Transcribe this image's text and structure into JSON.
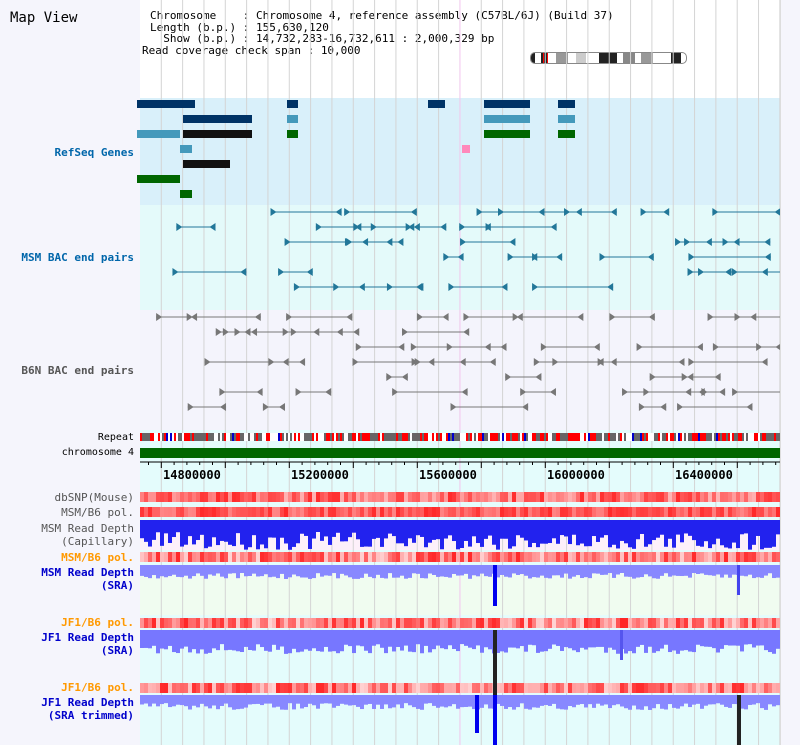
{
  "title": "Map View",
  "info": {
    "chromosome_label": "Chromosome    : ",
    "chromosome": "Chromosome 4, reference assembly (C57BL/6J) (Build 37)",
    "length_label": "Length (b.p.) : ",
    "length": "155,630,120",
    "show_label": "  Show (b.p.) : ",
    "show": "14,732,283-16,732,611 : 2,000,329 bp",
    "span_label": "Read coverage check span : ",
    "span": "10,000"
  },
  "range": {
    "start": 14732283,
    "end": 16732611
  },
  "tracks": {
    "refseq": "RefSeq Genes",
    "msm_bac": "MSM BAC end pairs",
    "b6n_bac": "B6N BAC end pairs",
    "repeat": "Repeat",
    "chromosome": "chromosome 4",
    "dbsnp": "dbSNP(Mouse)",
    "msm_pol": "MSM/B6 pol.",
    "msm_cap": "MSM Read Depth\n(Capillary)",
    "msm_pol2": "MSM/B6 pol.",
    "msm_sra": "MSM Read Depth\n(SRA)",
    "jf1_pol": "JF1/B6 pol.",
    "jf1_sra": "JF1 Read Depth\n(SRA)",
    "jf1_pol2": "JF1/B6 pol.",
    "jf1_trim": "JF1 Read Depth\n(SRA trimmed)"
  },
  "axis": {
    "ticks": [
      "14800000",
      "15200000",
      "15600000",
      "16000000",
      "16400000"
    ]
  },
  "colors": {
    "refseq_bg": "#d9f0fa",
    "msm_bac_bg": "#e4fafa",
    "chrom": "#006600",
    "accent_blue": "#0000ff"
  }
}
